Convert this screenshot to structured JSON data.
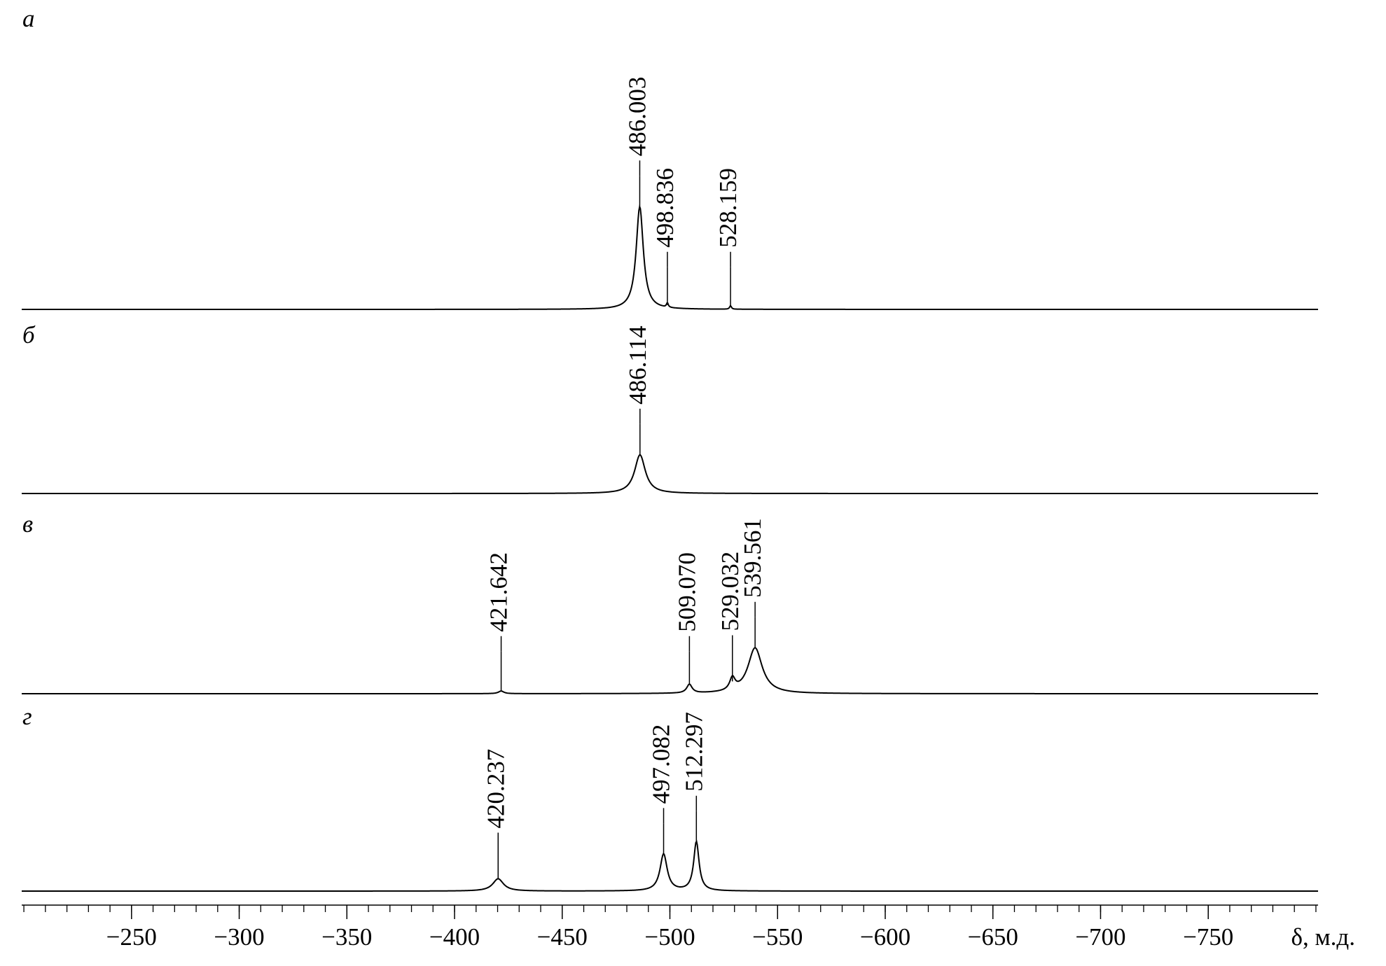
{
  "chart_data": {
    "type": "spectra",
    "xlabel": "δ, м.д.",
    "color": "#000000",
    "xlim": [
      -199,
      -801
    ],
    "xticks": [
      {
        "value": -250,
        "label": "−250"
      },
      {
        "value": -300,
        "label": "−300"
      },
      {
        "value": -350,
        "label": "−350"
      },
      {
        "value": -400,
        "label": "−400"
      },
      {
        "value": -450,
        "label": "−450"
      },
      {
        "value": -500,
        "label": "−500"
      },
      {
        "value": -550,
        "label": "−550"
      },
      {
        "value": -600,
        "label": "−600"
      },
      {
        "value": -650,
        "label": "−650"
      },
      {
        "value": -700,
        "label": "−700"
      },
      {
        "value": -750,
        "label": "−750"
      }
    ],
    "xminorticks": [
      -200,
      -210,
      -220,
      -230,
      -240,
      -250,
      -260,
      -270,
      -280,
      -290,
      -300,
      -310,
      -320,
      -330,
      -340,
      -350,
      -360,
      -370,
      -380,
      -390,
      -400,
      -410,
      -420,
      -430,
      -440,
      -450,
      -460,
      -470,
      -480,
      -490,
      -500,
      -510,
      -520,
      -530,
      -540,
      -550,
      -560,
      -570,
      -580,
      -590,
      -600,
      -610,
      -620,
      -630,
      -640,
      -650,
      -660,
      -670,
      -680,
      -690,
      -700,
      -710,
      -720,
      -730,
      -740,
      -750,
      -760,
      -770,
      -780,
      -790,
      -800
    ],
    "series": [
      {
        "name": "а",
        "peaks": {
          "x": [
            {
              "value": -486.003,
              "label": "486.003"
            },
            {
              "value": -498.836,
              "label": "498.836"
            },
            {
              "value": -528.159,
              "label": "528.159"
            }
          ],
          "values": [
            117,
            5,
            4
          ],
          "widths": [
            2,
            0.5,
            0.5
          ]
        }
      },
      {
        "name": "б",
        "peaks": {
          "x": [
            {
              "value": -486.114,
              "label": "486.114"
            }
          ],
          "values": [
            44
          ],
          "widths": [
            3
          ]
        }
      },
      {
        "name": "в",
        "peaks": {
          "x": [
            {
              "value": -421.642,
              "label": "421.642"
            },
            {
              "value": -509.07,
              "label": "509.070"
            },
            {
              "value": -529.032,
              "label": "529.032"
            },
            {
              "value": -539.561,
              "label": "539.561"
            }
          ],
          "values": [
            3,
            10,
            14,
            52
          ],
          "widths": [
            1.5,
            1.5,
            1.5,
            4
          ]
        }
      },
      {
        "name": "г",
        "peaks": {
          "x": [
            {
              "value": -420.237,
              "label": "420.237"
            },
            {
              "value": -497.082,
              "label": "497.082"
            },
            {
              "value": -512.297,
              "label": "512.297"
            }
          ],
          "values": [
            14,
            42,
            56
          ],
          "widths": [
            3,
            2,
            1.5
          ]
        }
      }
    ]
  }
}
